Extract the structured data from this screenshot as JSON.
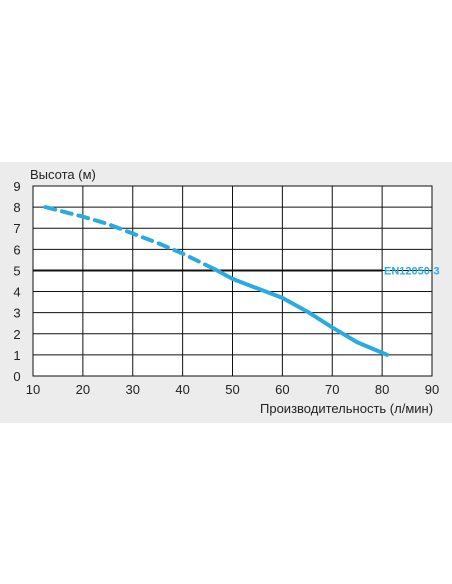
{
  "chart_data": {
    "type": "line",
    "ylabel": "Высота (м)",
    "xlabel": "Производительность (л/мин)",
    "xlim": [
      10,
      90
    ],
    "ylim": [
      0,
      9
    ],
    "xticks": [
      10,
      20,
      30,
      40,
      50,
      60,
      70,
      80,
      90
    ],
    "yticks": [
      0,
      1,
      2,
      3,
      4,
      5,
      6,
      7,
      8,
      9
    ],
    "grid": true,
    "series": [
      {
        "style": "dashed",
        "color": "#29abe2",
        "x": [
          12.5,
          20,
          25,
          30,
          35,
          40,
          46.5
        ],
        "y": [
          8,
          7.55,
          7.2,
          6.75,
          6.3,
          5.8,
          5.05
        ]
      },
      {
        "style": "solid",
        "color": "#29abe2",
        "x": [
          46.5,
          50,
          55,
          60,
          65,
          70,
          75,
          81
        ],
        "y": [
          5.05,
          4.6,
          4.15,
          3.7,
          3.05,
          2.3,
          1.6,
          1.0
        ]
      }
    ],
    "reference_line": {
      "y": 5,
      "label": "EN12050-3",
      "color": "#111111"
    }
  }
}
